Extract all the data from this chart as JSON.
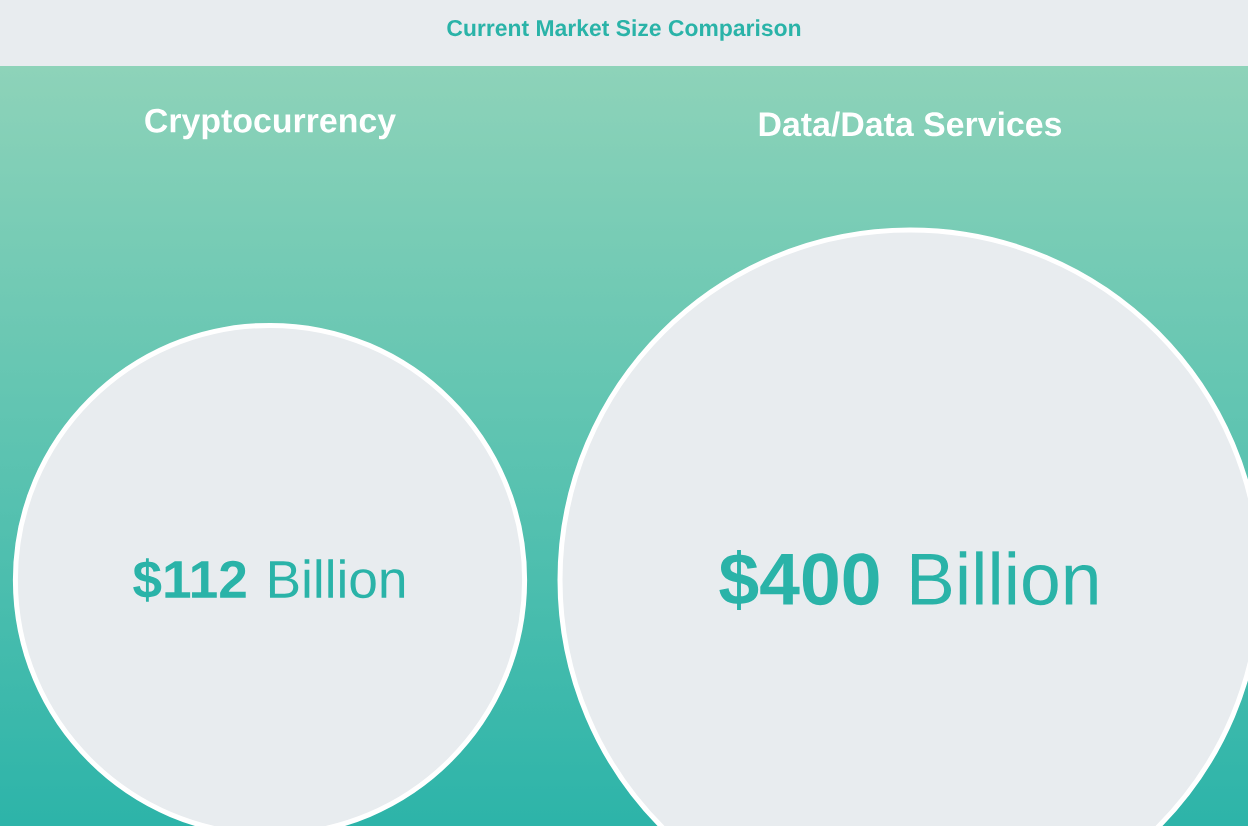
{
  "chart_data": {
    "type": "other",
    "title": "Current Market Size Comparison",
    "categories": [
      "Cryptocurrency",
      "Data/Data Services"
    ],
    "values": [
      112,
      400
    ],
    "value_labels": [
      "**$112** Billion",
      "**$400** Billion"
    ],
    "colors": [
      "#e8ecef",
      "#e8ecef"
    ]
  }
}
